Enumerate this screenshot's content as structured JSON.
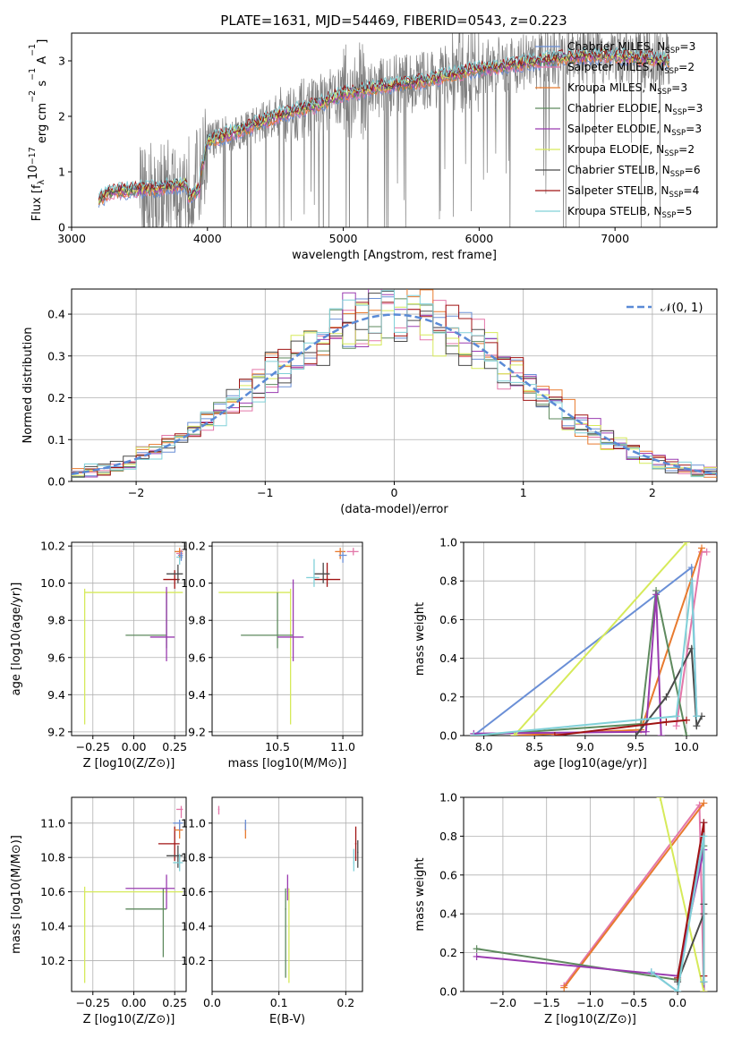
{
  "figure_title": "PLATE=1631, MJD=54469, FIBERID=0543, z=0.223",
  "colors": {
    "chabrier_miles": "#6a8fd6",
    "salpeter_miles": "#e377a9",
    "kroupa_miles": "#e87a2e",
    "chabrier_elodie": "#5e8a5e",
    "salpeter_elodie": "#9a3bb0",
    "kroupa_elodie": "#d6ea5a",
    "chabrier_stelib": "#4a4a4a",
    "salpeter_stelib": "#a01414",
    "kroupa_stelib": "#80d0d8",
    "observed": "#7f7f7f"
  },
  "chart_data": [
    {
      "id": "spectrum",
      "type": "line",
      "xlabel": "wavelength [Angstrom, rest frame]",
      "ylabel": "Flux [f$_\\lambda$10$^{-17}$ erg cm$^{-2}$ s$^{-1}$ A$^{-1}$]",
      "ylabel_parts": [
        "Flux [f",
        "λ",
        "10",
        "−17",
        " erg cm",
        "−2",
        " s",
        "−1",
        " A",
        "−1",
        "]"
      ],
      "xlim": [
        3000,
        7750
      ],
      "ylim": [
        0,
        3.5
      ],
      "xticks": [
        3000,
        4000,
        5000,
        6000,
        7000
      ],
      "yticks": [
        0,
        1,
        2,
        3
      ],
      "legend_position": "top-right",
      "legend": [
        {
          "name": "Chabrier MILES",
          "nssp": "3",
          "color_key": "chabrier_miles"
        },
        {
          "name": "Salpeter MILES",
          "nssp": "2",
          "color_key": "salpeter_miles"
        },
        {
          "name": "Kroupa MILES",
          "nssp": "3",
          "color_key": "kroupa_miles"
        },
        {
          "name": "Chabrier ELODIE",
          "nssp": "3",
          "color_key": "chabrier_elodie"
        },
        {
          "name": "Salpeter ELODIE",
          "nssp": "3",
          "color_key": "salpeter_elodie"
        },
        {
          "name": "Kroupa ELODIE",
          "nssp": "2",
          "color_key": "kroupa_elodie"
        },
        {
          "name": "Chabrier STELIB",
          "nssp": "6",
          "color_key": "chabrier_stelib"
        },
        {
          "name": "Salpeter STELIB",
          "nssp": "4",
          "color_key": "salpeter_stelib"
        },
        {
          "name": "Kroupa STELIB",
          "nssp": "5",
          "color_key": "kroupa_stelib"
        }
      ],
      "continuum": {
        "x": [
          3200,
          3300,
          3500,
          3700,
          3850,
          3950,
          4000,
          4300,
          4500,
          4800,
          5000,
          5200,
          5500,
          5800,
          6000,
          6300,
          6600,
          6900,
          7200,
          7400
        ],
        "y": [
          0.5,
          0.65,
          0.68,
          0.72,
          0.78,
          0.95,
          1.55,
          1.8,
          2.0,
          2.2,
          2.4,
          2.5,
          2.6,
          2.75,
          2.85,
          2.95,
          3.05,
          3.1,
          3.05,
          3.0
        ]
      },
      "model_x_range": [
        3200,
        7400
      ]
    },
    {
      "id": "residual-histogram",
      "type": "histogram",
      "xlabel": "(data-model)/error",
      "ylabel": "Normed distribution",
      "xlim": [
        -2.5,
        2.5
      ],
      "ylim": [
        0,
        0.46
      ],
      "xticks": [
        -2,
        -1,
        0,
        1,
        2
      ],
      "xtick_labels": [
        "−2",
        "−1",
        "0",
        "1",
        "2"
      ],
      "yticks": [
        0.0,
        0.1,
        0.2,
        0.3,
        0.4
      ],
      "ytick_labels": [
        "0.0",
        "0.1",
        "0.2",
        "0.3",
        "0.4"
      ],
      "legend_position": "top-right",
      "gaussian_label": "𝒩(0, 1)",
      "gaussian_color": "#5a8ad6",
      "bin_width": 0.1
    },
    {
      "id": "age-vs-metallicity",
      "type": "scatter",
      "xlabel": "Z [log10(Z/Z⊙)]",
      "ylabel": "age  [log10(age/yr)]",
      "xlim": [
        -0.38,
        0.32
      ],
      "ylim": [
        9.18,
        10.22
      ],
      "xticks": [
        -0.25,
        0.0,
        0.25
      ],
      "xtick_labels": [
        "−0.25",
        "0.00",
        "0.25"
      ],
      "yticks": [
        9.2,
        9.4,
        9.6,
        9.8,
        10.0,
        10.2
      ],
      "ytick_labels": [
        "9.2",
        "9.4",
        "9.6",
        "9.8",
        "10.0",
        "10.2"
      ],
      "points": [
        {
          "x": -0.3,
          "y": 9.95,
          "xl": -0.3,
          "xh": 0.3,
          "yl": 9.24,
          "yh": 9.97,
          "color_key": "kroupa_elodie"
        },
        {
          "x": 0.2,
          "y": 9.72,
          "xl": -0.05,
          "xh": 0.2,
          "yl": 9.65,
          "yh": 9.95,
          "color_key": "chabrier_elodie"
        },
        {
          "x": 0.2,
          "y": 9.71,
          "xl": 0.1,
          "xh": 0.25,
          "yl": 9.58,
          "yh": 9.98,
          "color_key": "salpeter_elodie"
        },
        {
          "x": 0.25,
          "y": 10.02,
          "xl": 0.18,
          "xh": 0.28,
          "yl": 9.97,
          "yh": 10.07,
          "color_key": "salpeter_stelib"
        },
        {
          "x": 0.27,
          "y": 10.05,
          "xl": 0.2,
          "xh": 0.3,
          "yl": 10.0,
          "yh": 10.1,
          "color_key": "chabrier_stelib"
        },
        {
          "x": 0.28,
          "y": 10.14,
          "xl": 0.26,
          "xh": 0.3,
          "yl": 10.1,
          "yh": 10.18,
          "color_key": "kroupa_stelib"
        },
        {
          "x": 0.28,
          "y": 10.17,
          "xl": 0.25,
          "xh": 0.3,
          "yl": 10.14,
          "yh": 10.19,
          "color_key": "kroupa_miles"
        },
        {
          "x": 0.29,
          "y": 10.16,
          "xl": 0.26,
          "xh": 0.3,
          "yl": 10.13,
          "yh": 10.18,
          "color_key": "salpeter_miles"
        },
        {
          "x": 0.29,
          "y": 10.15,
          "xl": 0.27,
          "xh": 0.3,
          "yl": 10.12,
          "yh": 10.17,
          "color_key": "chabrier_miles"
        }
      ]
    },
    {
      "id": "age-vs-mass",
      "type": "scatter",
      "xlabel": "mass [log10(M/M⊙)]",
      "ylabel": "",
      "xlim": [
        10.0,
        11.15
      ],
      "ylim": [
        9.18,
        10.22
      ],
      "xticks": [
        10.5,
        11.0
      ],
      "xtick_labels": [
        "10.5",
        "11.0"
      ],
      "yticks": [
        9.2,
        9.4,
        9.6,
        9.8,
        10.0,
        10.2
      ],
      "ytick_labels": [
        "9.2",
        "9.4",
        "9.6",
        "9.8",
        "10.0",
        "10.2"
      ],
      "points": [
        {
          "x": 10.6,
          "y": 9.95,
          "xl": 10.05,
          "xh": 10.6,
          "yl": 9.24,
          "yh": 9.97,
          "color_key": "kroupa_elodie"
        },
        {
          "x": 10.5,
          "y": 9.72,
          "xl": 10.22,
          "xh": 10.62,
          "yl": 9.65,
          "yh": 9.95,
          "color_key": "chabrier_elodie"
        },
        {
          "x": 10.62,
          "y": 9.71,
          "xl": 10.5,
          "xh": 10.7,
          "yl": 9.58,
          "yh": 10.02,
          "color_key": "salpeter_elodie"
        },
        {
          "x": 10.88,
          "y": 10.02,
          "xl": 10.78,
          "xh": 10.98,
          "yl": 9.98,
          "yh": 10.11,
          "color_key": "salpeter_stelib"
        },
        {
          "x": 10.85,
          "y": 10.05,
          "xl": 10.78,
          "xh": 10.9,
          "yl": 10.0,
          "yh": 10.11,
          "color_key": "chabrier_stelib"
        },
        {
          "x": 10.78,
          "y": 10.03,
          "xl": 10.72,
          "xh": 10.82,
          "yl": 9.98,
          "yh": 10.13,
          "color_key": "kroupa_stelib"
        },
        {
          "x": 10.98,
          "y": 10.17,
          "xl": 10.94,
          "xh": 11.02,
          "yl": 10.13,
          "yh": 10.19,
          "color_key": "kroupa_miles"
        },
        {
          "x": 11.08,
          "y": 10.17,
          "xl": 11.03,
          "xh": 11.12,
          "yl": 10.15,
          "yh": 10.19,
          "color_key": "salpeter_miles"
        },
        {
          "x": 11.0,
          "y": 10.15,
          "xl": 10.97,
          "xh": 11.03,
          "yl": 10.11,
          "yh": 10.17,
          "color_key": "chabrier_miles"
        }
      ]
    },
    {
      "id": "weight-vs-age",
      "type": "line",
      "xlabel": "age  [log10(age/yr)]",
      "ylabel": "mass weight",
      "xlim": [
        7.8,
        10.3
      ],
      "ylim": [
        0,
        1
      ],
      "xticks": [
        8.0,
        8.5,
        9.0,
        9.5,
        10.0
      ],
      "xtick_labels": [
        "8.0",
        "8.5",
        "9.0",
        "9.5",
        "10.0"
      ],
      "yticks": [
        0,
        0.2,
        0.4,
        0.6,
        0.8,
        1.0
      ],
      "ytick_labels": [
        "0.0",
        "0.2",
        "0.4",
        "0.6",
        "0.8",
        "1.0"
      ],
      "series": [
        {
          "color_key": "chabrier_miles",
          "x": [
            7.9,
            10.05,
            10.1
          ],
          "y": [
            0.0,
            0.87,
            0.1
          ]
        },
        {
          "color_key": "salpeter_miles",
          "x": [
            9.9,
            10.15,
            10.2
          ],
          "y": [
            0.05,
            0.95,
            0.95
          ]
        },
        {
          "color_key": "kroupa_miles",
          "x": [
            8.3,
            9.55,
            10.15
          ],
          "y": [
            0.0,
            0.03,
            0.97
          ]
        },
        {
          "color_key": "chabrier_elodie",
          "x": [
            7.9,
            9.55,
            9.7,
            10.0
          ],
          "y": [
            0.0,
            0.06,
            0.75,
            0.0
          ]
        },
        {
          "color_key": "salpeter_elodie",
          "x": [
            7.9,
            9.6,
            9.7,
            9.75
          ],
          "y": [
            0.01,
            0.02,
            0.73,
            0.0
          ]
        },
        {
          "color_key": "kroupa_elodie",
          "x": [
            8.3,
            10.0
          ],
          "y": [
            0.0,
            1.0
          ]
        },
        {
          "color_key": "chabrier_stelib",
          "x": [
            9.5,
            9.8,
            10.05,
            10.1,
            10.15
          ],
          "y": [
            0.0,
            0.2,
            0.45,
            0.05,
            0.1
          ]
        },
        {
          "color_key": "salpeter_stelib",
          "x": [
            8.7,
            9.8,
            10.0
          ],
          "y": [
            0.0,
            0.07,
            0.08
          ]
        },
        {
          "color_key": "kroupa_stelib",
          "x": [
            7.9,
            9.9,
            10.05,
            10.1
          ],
          "y": [
            0.0,
            0.1,
            0.8,
            0.1
          ]
        }
      ]
    },
    {
      "id": "mass-vs-metallicity",
      "type": "scatter",
      "xlabel": "Z [log10(Z/Z⊙)]",
      "ylabel": "mass [log10(M/M⊙)]",
      "xlim": [
        -0.38,
        0.32
      ],
      "ylim": [
        10.02,
        11.15
      ],
      "xticks": [
        -0.25,
        0.0,
        0.25
      ],
      "xtick_labels": [
        "−0.25",
        "0.00",
        "0.25"
      ],
      "yticks": [
        10.2,
        10.4,
        10.6,
        10.8,
        11.0
      ],
      "ytick_labels": [
        "10.2",
        "10.4",
        "10.6",
        "10.8",
        "11.0"
      ],
      "points": [
        {
          "x": -0.3,
          "y": 10.6,
          "xl": -0.3,
          "xh": 0.3,
          "yl": 10.07,
          "yh": 10.63,
          "color_key": "kroupa_elodie"
        },
        {
          "x": 0.18,
          "y": 10.5,
          "xl": -0.05,
          "xh": 0.2,
          "yl": 10.22,
          "yh": 10.62,
          "color_key": "chabrier_elodie"
        },
        {
          "x": 0.2,
          "y": 10.62,
          "xl": -0.05,
          "xh": 0.25,
          "yl": 10.5,
          "yh": 10.7,
          "color_key": "salpeter_elodie"
        },
        {
          "x": 0.25,
          "y": 10.88,
          "xl": 0.15,
          "xh": 0.28,
          "yl": 10.78,
          "yh": 10.98,
          "color_key": "salpeter_stelib"
        },
        {
          "x": 0.27,
          "y": 10.81,
          "xl": 0.2,
          "xh": 0.3,
          "yl": 10.74,
          "yh": 10.87,
          "color_key": "chabrier_stelib"
        },
        {
          "x": 0.28,
          "y": 10.77,
          "xl": 0.24,
          "xh": 0.3,
          "yl": 10.72,
          "yh": 10.82,
          "color_key": "kroupa_stelib"
        },
        {
          "x": 0.28,
          "y": 10.96,
          "xl": 0.25,
          "xh": 0.3,
          "yl": 10.91,
          "yh": 11.0,
          "color_key": "kroupa_miles"
        },
        {
          "x": 0.29,
          "y": 11.08,
          "xl": 0.26,
          "xh": 0.3,
          "yl": 11.03,
          "yh": 11.1,
          "color_key": "salpeter_miles"
        },
        {
          "x": 0.28,
          "y": 11.0,
          "xl": 0.24,
          "xh": 0.3,
          "yl": 10.96,
          "yh": 11.02,
          "color_key": "chabrier_miles"
        }
      ]
    },
    {
      "id": "mass-vs-extinction",
      "type": "scatter",
      "xlabel": "E(B-V)",
      "ylabel": "",
      "xlim": [
        0.0,
        0.225
      ],
      "ylim": [
        10.02,
        11.15
      ],
      "xticks": [
        0.0,
        0.1,
        0.2
      ],
      "xtick_labels": [
        "0.0",
        "0.1",
        "0.2"
      ],
      "yticks": [
        10.2,
        10.4,
        10.6,
        10.8,
        11.0
      ],
      "ytick_labels": [
        "10.2",
        "10.4",
        "10.6",
        "10.8",
        "11.0"
      ],
      "points": [
        {
          "x": 0.11,
          "y": 10.5,
          "xl": 0.109,
          "xh": 0.111,
          "yl": 10.1,
          "yh": 10.62,
          "color_key": "chabrier_elodie"
        },
        {
          "x": 0.115,
          "y": 10.6,
          "xl": 0.114,
          "xh": 0.116,
          "yl": 10.07,
          "yh": 10.62,
          "color_key": "kroupa_elodie"
        },
        {
          "x": 0.113,
          "y": 10.62,
          "xl": 0.112,
          "xh": 0.114,
          "yl": 10.55,
          "yh": 10.7,
          "color_key": "salpeter_elodie"
        },
        {
          "x": 0.215,
          "y": 10.88,
          "xl": 0.214,
          "xh": 0.216,
          "yl": 10.78,
          "yh": 10.98,
          "color_key": "salpeter_stelib"
        },
        {
          "x": 0.218,
          "y": 10.83,
          "xl": 0.217,
          "xh": 0.219,
          "yl": 10.74,
          "yh": 10.9,
          "color_key": "chabrier_stelib"
        },
        {
          "x": 0.212,
          "y": 10.77,
          "xl": 0.211,
          "xh": 0.213,
          "yl": 10.72,
          "yh": 10.85,
          "color_key": "kroupa_stelib"
        },
        {
          "x": 0.05,
          "y": 10.96,
          "xl": 0.049,
          "xh": 0.051,
          "yl": 10.91,
          "yh": 11.0,
          "color_key": "kroupa_miles"
        },
        {
          "x": 0.01,
          "y": 11.08,
          "xl": 0.009,
          "xh": 0.011,
          "yl": 11.05,
          "yh": 11.1,
          "color_key": "salpeter_miles"
        },
        {
          "x": 0.05,
          "y": 11.0,
          "xl": 0.049,
          "xh": 0.051,
          "yl": 10.96,
          "yh": 11.02,
          "color_key": "chabrier_miles"
        }
      ]
    },
    {
      "id": "weight-vs-metallicity",
      "type": "line",
      "xlabel": "Z [log10(Z/Z⊙)]",
      "ylabel": "mass weight",
      "xlim": [
        -2.45,
        0.45
      ],
      "ylim": [
        0,
        1
      ],
      "xticks": [
        -2.0,
        -1.5,
        -1.0,
        -0.5,
        0.0
      ],
      "xtick_labels": [
        "−2.0",
        "−1.5",
        "−1.0",
        "−0.5",
        "0.0"
      ],
      "yticks": [
        0,
        0.2,
        0.4,
        0.6,
        0.8,
        1.0
      ],
      "ytick_labels": [
        "0.0",
        "0.2",
        "0.4",
        "0.6",
        "0.8",
        "1.0"
      ],
      "series": [
        {
          "color_key": "chabrier_miles",
          "x": [
            -0.3,
            0.0,
            0.3,
            0.3
          ],
          "y": [
            0.1,
            0.0,
            0.87,
            0.05
          ]
        },
        {
          "color_key": "salpeter_miles",
          "x": [
            -1.3,
            0.25,
            0.3
          ],
          "y": [
            0.03,
            0.96,
            0.0
          ]
        },
        {
          "color_key": "kroupa_miles",
          "x": [
            -1.3,
            0.3
          ],
          "y": [
            0.02,
            0.97
          ]
        },
        {
          "color_key": "chabrier_elodie",
          "x": [
            -2.3,
            0.0,
            0.3,
            0.3
          ],
          "y": [
            0.22,
            0.06,
            0.75,
            0.0
          ]
        },
        {
          "color_key": "salpeter_elodie",
          "x": [
            -2.3,
            0.0,
            0.3,
            0.3
          ],
          "y": [
            0.18,
            0.08,
            0.73,
            0.0
          ]
        },
        {
          "color_key": "kroupa_elodie",
          "x": [
            -0.2,
            0.3
          ],
          "y": [
            1.0,
            0.0
          ]
        },
        {
          "color_key": "chabrier_stelib",
          "x": [
            0.0,
            0.3,
            0.3,
            0.3
          ],
          "y": [
            0.05,
            0.4,
            0.45,
            0.05
          ]
        },
        {
          "color_key": "salpeter_stelib",
          "x": [
            0.0,
            0.3,
            0.3
          ],
          "y": [
            0.07,
            0.87,
            0.08
          ]
        },
        {
          "color_key": "kroupa_stelib",
          "x": [
            -0.3,
            0.0,
            0.3,
            0.3
          ],
          "y": [
            0.1,
            0.0,
            0.8,
            0.05
          ]
        }
      ]
    }
  ]
}
